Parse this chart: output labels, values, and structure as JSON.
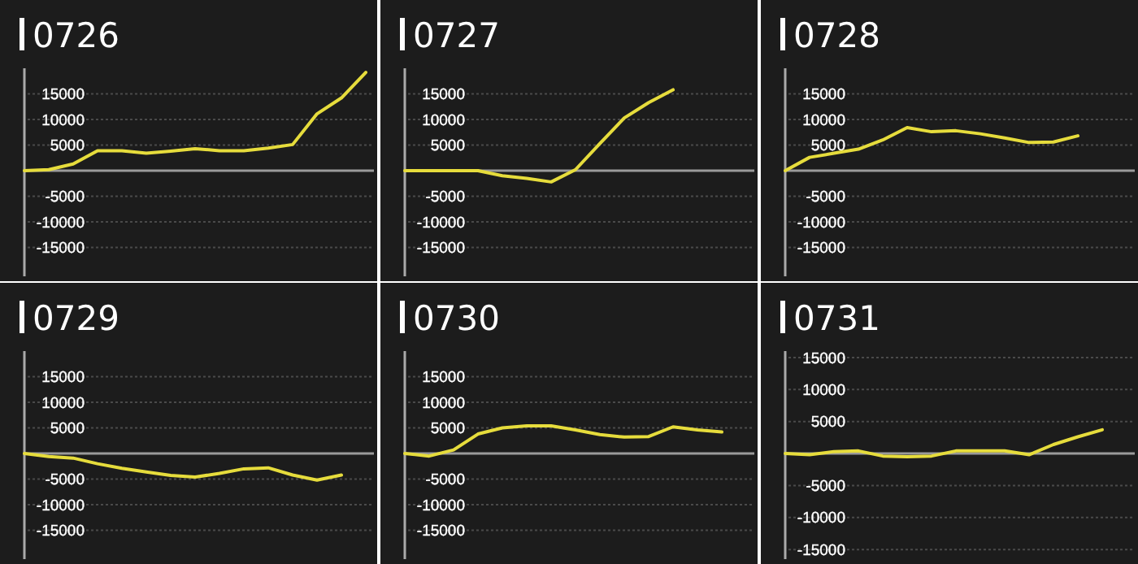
{
  "chart_data": [
    {
      "type": "line",
      "title": "0726",
      "categories": [
        null,
        null,
        null,
        null,
        null,
        null,
        null,
        null,
        null,
        null,
        null,
        null,
        null,
        null,
        null
      ],
      "series": [
        {
          "color": "#e6dc3c",
          "values": [
            0,
            200,
            1300,
            3900,
            3900,
            3400,
            3800,
            4300,
            3900,
            3900,
            4400,
            5100,
            11100,
            14200,
            19200
          ]
        }
      ],
      "ylim": [
        -20000,
        20000
      ],
      "yticks": [
        -15000,
        -10000,
        -5000,
        5000,
        10000,
        15000
      ],
      "grid": "y",
      "tick_labels": "y",
      "ref_lines": [
        {
          "axis": "y",
          "value": 0,
          "color": "#9a9a9a"
        }
      ]
    },
    {
      "type": "line",
      "title": "0727",
      "categories": [
        null,
        null,
        null,
        null,
        null,
        null,
        null,
        null,
        null,
        null,
        null,
        null,
        null,
        null,
        null
      ],
      "series": [
        {
          "color": "#e6dc3c",
          "values": [
            0,
            0,
            0,
            0,
            -1000,
            -1500,
            -2200,
            200,
            5300,
            10300,
            13300,
            15800,
            null,
            null,
            null
          ]
        }
      ],
      "ylim": [
        -20000,
        20000
      ],
      "yticks": [
        -15000,
        -10000,
        -5000,
        5000,
        10000,
        15000
      ],
      "grid": "y",
      "tick_labels": "y",
      "ref_lines": [
        {
          "axis": "y",
          "value": 0,
          "color": "#9a9a9a"
        }
      ]
    },
    {
      "type": "line",
      "title": "0728",
      "categories": [
        null,
        null,
        null,
        null,
        null,
        null,
        null,
        null,
        null,
        null,
        null,
        null,
        null,
        null,
        null
      ],
      "series": [
        {
          "color": "#e6dc3c",
          "values": [
            0,
            2600,
            3400,
            4200,
            6000,
            8400,
            7600,
            7800,
            7200,
            6400,
            5500,
            5600,
            6800,
            null,
            null
          ]
        }
      ],
      "ylim": [
        -20000,
        20000
      ],
      "yticks": [
        -15000,
        -10000,
        -5000,
        5000,
        10000,
        15000
      ],
      "grid": "y",
      "tick_labels": "y",
      "ref_lines": [
        {
          "axis": "y",
          "value": 0,
          "color": "#9a9a9a"
        }
      ]
    },
    {
      "type": "line",
      "title": "0729",
      "categories": [
        null,
        null,
        null,
        null,
        null,
        null,
        null,
        null,
        null,
        null,
        null,
        null,
        null,
        null,
        null
      ],
      "series": [
        {
          "color": "#e6dc3c",
          "values": [
            0,
            -600,
            -900,
            -2000,
            -2900,
            -3600,
            -4300,
            -4600,
            -3900,
            -3000,
            -2800,
            -4200,
            -5200,
            -4200,
            null
          ]
        }
      ],
      "ylim": [
        -20000,
        20000
      ],
      "yticks": [
        -15000,
        -10000,
        -5000,
        5000,
        10000,
        15000
      ],
      "grid": "y",
      "tick_labels": "y",
      "ref_lines": [
        {
          "axis": "y",
          "value": 0,
          "color": "#9a9a9a"
        }
      ]
    },
    {
      "type": "line",
      "title": "0730",
      "categories": [
        null,
        null,
        null,
        null,
        null,
        null,
        null,
        null,
        null,
        null,
        null,
        null,
        null,
        null,
        null
      ],
      "series": [
        {
          "color": "#e6dc3c",
          "values": [
            0,
            -500,
            700,
            3800,
            5000,
            5400,
            5400,
            4600,
            3700,
            3200,
            3300,
            5200,
            4600,
            4200,
            null
          ]
        }
      ],
      "ylim": [
        -20000,
        20000
      ],
      "yticks": [
        -15000,
        -10000,
        -5000,
        5000,
        10000,
        15000
      ],
      "grid": "y",
      "tick_labels": "y",
      "ref_lines": [
        {
          "axis": "y",
          "value": 0,
          "color": "#9a9a9a"
        }
      ]
    },
    {
      "type": "line",
      "title": "0731",
      "categories": [
        null,
        null,
        null,
        null,
        null,
        null,
        null,
        null,
        null,
        null,
        null,
        null,
        null,
        null,
        null
      ],
      "series": [
        {
          "color": "#e6dc3c",
          "values": [
            0,
            -200,
            300,
            400,
            -400,
            -500,
            -400,
            400,
            400,
            400,
            -200,
            1400,
            2600,
            3700,
            null
          ]
        }
      ],
      "ylim": [
        -16000,
        16000
      ],
      "yticks": [
        -15000,
        -10000,
        -5000,
        5000,
        10000,
        15000
      ],
      "grid": "y",
      "tick_labels": "y",
      "ref_lines": [
        {
          "axis": "y",
          "value": 0,
          "color": "#9a9a9a"
        }
      ]
    }
  ]
}
